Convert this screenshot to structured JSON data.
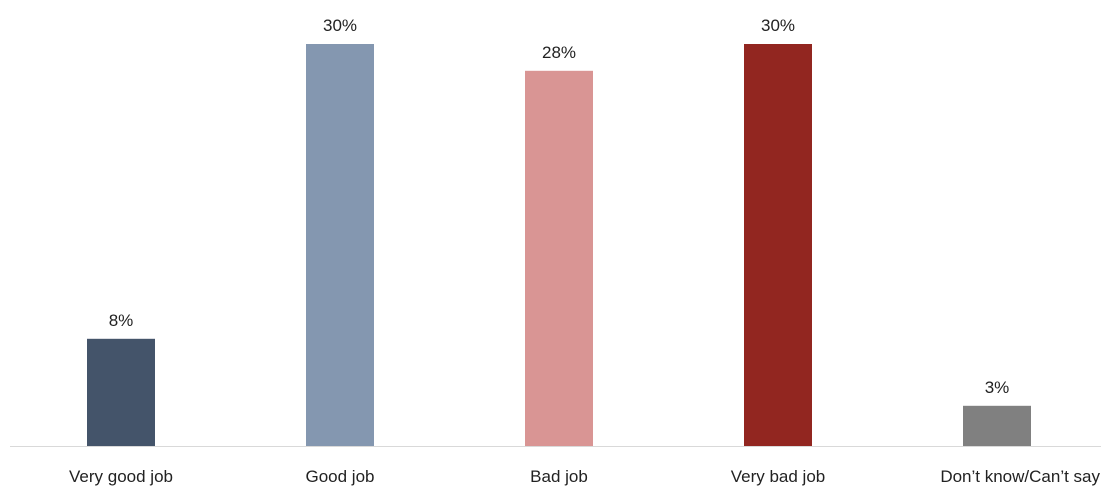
{
  "chart_data": {
    "type": "bar",
    "title": "",
    "xlabel": "",
    "ylabel": "",
    "ylim": [
      0,
      32
    ],
    "grid": false,
    "categories": [
      "Very good job",
      "Good job",
      "Bad job",
      "Very bad job",
      "Don’t know/Can’t say"
    ],
    "values": [
      8,
      30,
      28,
      30,
      3
    ],
    "value_labels": [
      "8%",
      "30%",
      "28%",
      "30%",
      "3%"
    ],
    "colors": [
      "#44546a",
      "#8497b0",
      "#d99594",
      "#922620",
      "#808080"
    ]
  }
}
